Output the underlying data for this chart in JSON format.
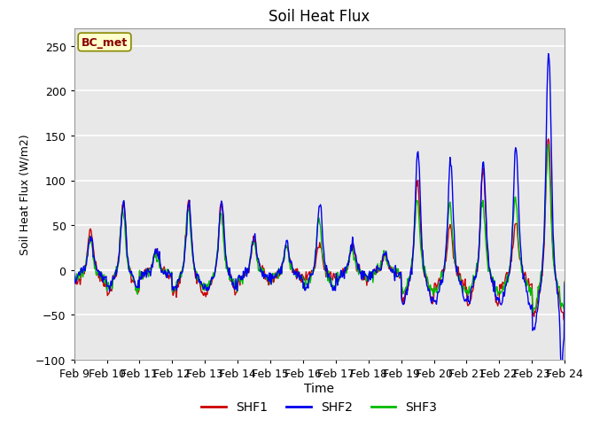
{
  "title": "Soil Heat Flux",
  "xlabel": "Time",
  "ylabel": "Soil Heat Flux (W/m2)",
  "ylim": [
    -100,
    270
  ],
  "yticks": [
    -100,
    -50,
    0,
    50,
    100,
    150,
    200,
    250
  ],
  "xtick_labels": [
    "Feb 9",
    "Feb 10",
    "Feb 11",
    "Feb 12",
    "Feb 13",
    "Feb 14",
    "Feb 15",
    "Feb 16",
    "Feb 17",
    "Feb 18",
    "Feb 19",
    "Feb 20",
    "Feb 21",
    "Feb 22",
    "Feb 23",
    "Feb 24"
  ],
  "colors": {
    "SHF1": "#cc0000",
    "SHF2": "#0000ee",
    "SHF3": "#00bb00"
  },
  "legend_label": "BC_met",
  "legend_box_color": "#ffffcc",
  "legend_box_edge": "#888800",
  "fig_bg_color": "#ffffff",
  "plot_bg_color": "#e8e8e8",
  "grid_color": "white",
  "linewidth": 1.0
}
